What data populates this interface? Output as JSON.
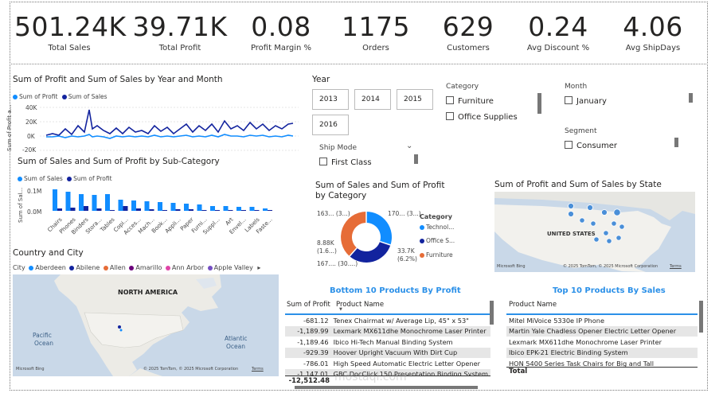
{
  "kpis": [
    {
      "value": "501.24K",
      "label": "Total Sales"
    },
    {
      "value": "39.71K",
      "label": "Total Profit"
    },
    {
      "value": "0.08",
      "label": "Profit Margin %"
    },
    {
      "value": "1175",
      "label": "Orders"
    },
    {
      "value": "629",
      "label": "Customers"
    },
    {
      "value": "0.24",
      "label": "Avg Discount %"
    },
    {
      "value": "4.06",
      "label": "Avg ShipDays"
    }
  ],
  "line_chart": {
    "title": "Sum of Profit and Sum of Sales by Year and Month",
    "legend": [
      "Sum of Profit",
      "Sum of Sales"
    ],
    "ylabel": "Sum of Profit a...",
    "yticks": [
      "40K",
      "20K",
      "0K",
      "-20K"
    ]
  },
  "bar_chart": {
    "title": "Sum of Sales and Sum of Profit by Sub-Category",
    "legend": [
      "Sum of Sales",
      "Sum of Profit"
    ],
    "ylabel": "Sum of Sal...",
    "yticks": [
      "0.1M",
      "0.0M"
    ],
    "categories": [
      "Chairs",
      "Phones",
      "Binders",
      "Stora...",
      "Tables",
      "Copi...",
      "Acces...",
      "Mach...",
      "Book...",
      "Appli...",
      "Paper",
      "Furni...",
      "Suppl...",
      "Art",
      "Envel...",
      "Labels",
      "Faste..."
    ]
  },
  "year_slicer": {
    "title": "Year",
    "options": [
      "2013",
      "2014",
      "2015",
      "2016"
    ]
  },
  "category_slicer": {
    "title": "Category",
    "options": [
      "Furniture",
      "Office Supplies"
    ]
  },
  "month_slicer": {
    "title": "Month",
    "options": [
      "January"
    ]
  },
  "segment_slicer": {
    "title": "Segment",
    "options": [
      "Consumer"
    ]
  },
  "shipmode_slicer": {
    "title": "Ship Mode",
    "options": [
      "First Class"
    ]
  },
  "donut": {
    "title_line1": "Sum of Sales and Sum of Profit",
    "title_line2": "by Category",
    "legend_title": "Category",
    "legend": [
      "Technol...",
      "Office S...",
      "Furniture"
    ],
    "labels": {
      "top_left": "163... (3...)",
      "top_right": "170... (3...)",
      "mid_left1": "8.88K",
      "mid_left2": "(1.6...)",
      "bottom_left": "167.... (30....)",
      "mid_right1": "33.7K",
      "mid_right2": "(6.2%)"
    },
    "colors": {
      "tech": "#118dff",
      "office": "#12239e",
      "furniture": "#e66c37"
    }
  },
  "state_map": {
    "title": "Sum of Profit and Sum of Sales by State",
    "country_label": "UNITED STATES",
    "copyright": "© 2025 TomTom, © 2025 Microsoft Corporation",
    "terms": "Terms",
    "brand": "Microsoft Bing"
  },
  "city_map": {
    "title": "Country and City",
    "legend_label": "City",
    "legend": [
      "Aberdeen",
      "Abilene",
      "Allen",
      "Amarillo",
      "Ann Arbor",
      "Apple Valley"
    ],
    "legend_colors": [
      "#118dff",
      "#12239e",
      "#e66c37",
      "#6b007b",
      "#e044a7",
      "#744ec2"
    ],
    "region_label": "NORTH AMERICA",
    "ocean_left1": "Pacific",
    "ocean_left2": "Ocean",
    "ocean_right1": "Atlantic",
    "ocean_right2": "Ocean",
    "copyright": "© 2025 TomTom, © 2025 Microsoft Corporation",
    "terms": "Terms",
    "brand": "Microsoft Bing"
  },
  "bottom_table": {
    "title": "Bottom 10 Products By Profit",
    "col1": "Sum of Profit",
    "col2": "Product Name",
    "rows": [
      {
        "profit": "-681.12",
        "name": "Tenex Chairmat w/ Average Lip, 45\" x 53\""
      },
      {
        "profit": "-1,189.99",
        "name": "Lexmark MX611dhe Monochrome Laser Printer"
      },
      {
        "profit": "-1,189.46",
        "name": "Ibico Hi-Tech Manual Binding System"
      },
      {
        "profit": "-929.39",
        "name": "Hoover Upright Vacuum With Dirt Cup"
      },
      {
        "profit": "-786.01",
        "name": "High Speed Automatic Electric Letter Opener"
      },
      {
        "profit": "-1,147.01",
        "name": "GBC DocClick 150 Presentation Binding System"
      }
    ],
    "total": "-12,512.48"
  },
  "top_table": {
    "title": "Top 10 Products By Sales",
    "col": "Product Name",
    "rows": [
      "Mitel MiVoice 5330e IP Phone",
      "Martin Yale Chadless Opener Electric Letter Opener",
      "Lexmark MX611dhe Monochrome Laser Printer",
      "Ibico EPK-21 Electric Binding System",
      "HON 5400 Series Task Chairs for Big and Tall"
    ],
    "total_label": "Total"
  },
  "watermark": "mostaql.com"
}
